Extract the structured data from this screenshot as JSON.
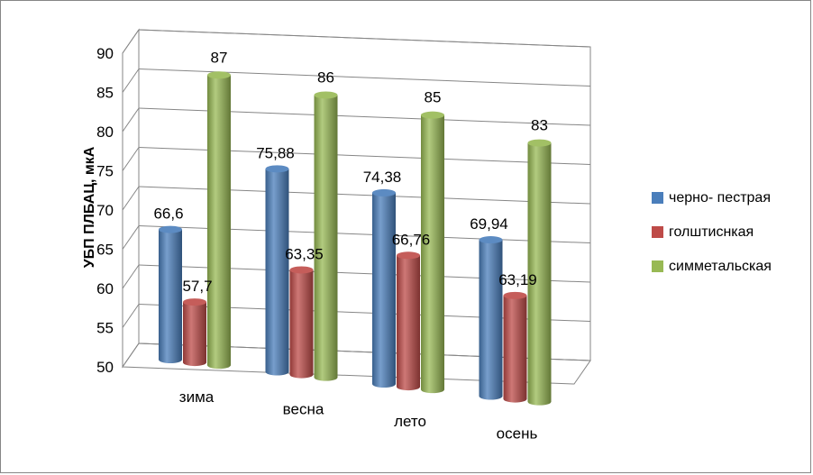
{
  "chart_data": {
    "type": "bar",
    "title": "",
    "xlabel": "",
    "ylabel": "УБП ПЛБАЦ, мкА",
    "ylim": [
      50,
      90
    ],
    "yticks": [
      "50",
      "55",
      "60",
      "65",
      "70",
      "75",
      "80",
      "85",
      "90"
    ],
    "categories": [
      "зима",
      "весна",
      "лето",
      "осень"
    ],
    "series": [
      {
        "name": "черно- пестрая",
        "color": "#4a7ebb",
        "values": [
          66.6,
          75.88,
          74.38,
          69.94
        ],
        "labels": [
          "66,6",
          "75,88",
          "74,38",
          "69,94"
        ]
      },
      {
        "name": "голштиснкая",
        "color": "#be4b48",
        "values": [
          57.7,
          63.35,
          66.76,
          63.19
        ],
        "labels": [
          "57,7",
          "63,35",
          "66,76",
          "63,19"
        ]
      },
      {
        "name": "симметальская",
        "color": "#98b954",
        "values": [
          87,
          86,
          85,
          83
        ],
        "labels": [
          "87",
          "86",
          "85",
          "83"
        ]
      }
    ],
    "grid": true,
    "legend_position": "right",
    "style": "3d-cylinder"
  }
}
